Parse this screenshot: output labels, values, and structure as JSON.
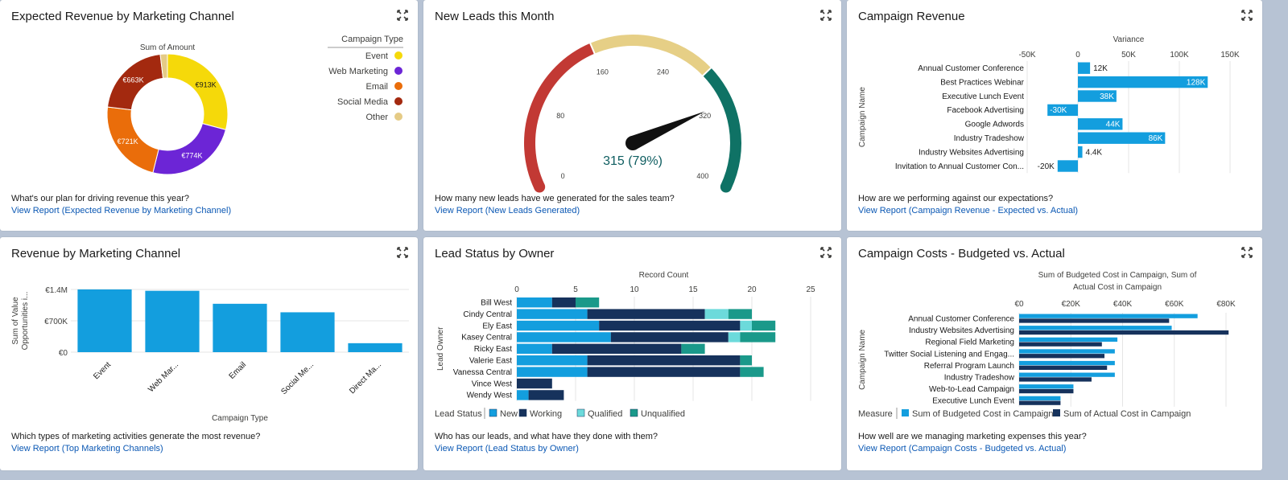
{
  "colors": {
    "blue": "#139ede",
    "navy": "#16325c",
    "teal_light": "#6cdadb",
    "teal": "#1a998a",
    "event": "#f5d90a",
    "web": "#6c25d6",
    "email": "#ea6d0a",
    "social": "#a3290f",
    "other": "#e5cb86"
  },
  "cards": [
    {
      "title": "Expected Revenue by Marketing Channel",
      "question": "What's our plan for driving revenue this year?",
      "link": "View Report (Expected Revenue by Marketing Channel)"
    },
    {
      "title": "New Leads this Month",
      "question": "How many new leads have we generated for the sales team?",
      "link": "View Report (New Leads Generated)"
    },
    {
      "title": "Campaign Revenue",
      "question": "How are we performing against our expectations?",
      "link": "View Report (Campaign Revenue - Expected vs. Actual)"
    },
    {
      "title": "Revenue by Marketing Channel",
      "question": "Which types of marketing activities generate the most revenue?",
      "link": "View Report (Top Marketing Channels)"
    },
    {
      "title": "Lead Status by Owner",
      "question": "Who has our leads, and what have they done with them?",
      "link": "View Report (Lead Status by Owner)"
    },
    {
      "title": "Campaign Costs - Budgeted vs. Actual",
      "question": "How well are we managing marketing expenses this year?",
      "link": "View Report (Campaign Costs - Budgeted vs. Actual)"
    }
  ],
  "chart_data": [
    {
      "type": "pie",
      "title": "Sum of Amount",
      "legend_title": "Campaign Type",
      "legend_position": "right",
      "slices": [
        {
          "name": "Event",
          "value": 913,
          "label": "€913K",
          "color": "#f5d90a"
        },
        {
          "name": "Web Marketing",
          "value": 774,
          "label": "€774K",
          "color": "#6c25d6"
        },
        {
          "name": "Email",
          "value": 721,
          "label": "€721K",
          "color": "#ea6d0a"
        },
        {
          "name": "Social Media",
          "value": 663,
          "label": "€663K",
          "color": "#a3290f"
        },
        {
          "name": "Other",
          "value": 60,
          "label": "",
          "color": "#e5cb86"
        }
      ]
    },
    {
      "type": "gauge",
      "value": 315,
      "display": "315 (79%)",
      "min": 0,
      "max": 400,
      "ticks": [
        "0",
        "80",
        "160",
        "240",
        "320",
        "400"
      ],
      "bands": [
        {
          "from": 0,
          "to": 160,
          "color": "#c23934"
        },
        {
          "from": 160,
          "to": 280,
          "color": "#e6cf86"
        },
        {
          "from": 280,
          "to": 400,
          "color": "#0f7265"
        }
      ]
    },
    {
      "type": "bar",
      "orientation": "horizontal",
      "xlabel": "Variance",
      "ylabel": "Campaign Name",
      "xlim": [
        -50,
        150
      ],
      "ticks": [
        "-50K",
        "0",
        "50K",
        "100K",
        "150K"
      ],
      "tick_values": [
        -50,
        0,
        50,
        100,
        150
      ],
      "categories": [
        "Annual Customer Conference",
        "Best Practices Webinar",
        "Executive Lunch Event",
        "Facebook Advertising",
        "Google Adwords",
        "Industry Tradeshow",
        "Industry Websites Advertising",
        "Invitation to Annual Customer Con..."
      ],
      "values": [
        12,
        128,
        38,
        -30,
        44,
        86,
        4.4,
        -20
      ],
      "labels": [
        "12K",
        "128K",
        "38K",
        "-30K",
        "44K",
        "86K",
        "4.4K",
        "-20K"
      ]
    },
    {
      "type": "bar",
      "orientation": "vertical",
      "xlabel": "Campaign Type",
      "ylabel": "Sum of Value Opportunities i...",
      "ylim": [
        0,
        1.4
      ],
      "ticks": [
        "€0",
        "€700K",
        "€1.4M"
      ],
      "tick_values": [
        0,
        0.7,
        1.4
      ],
      "categories": [
        "Event",
        "Web Mar...",
        "Email",
        "Social Me...",
        "Direct Ma..."
      ],
      "values": [
        1.4,
        1.37,
        1.08,
        0.89,
        0.2
      ]
    },
    {
      "type": "bar",
      "orientation": "horizontal",
      "stacked": true,
      "xlabel": "Record Count",
      "ylabel": "Lead Owner",
      "xlim": [
        0,
        25
      ],
      "ticks": [
        "0",
        "5",
        "10",
        "15",
        "20",
        "25"
      ],
      "tick_values": [
        0,
        5,
        10,
        15,
        20,
        25
      ],
      "categories": [
        "Bill West",
        "Cindy Central",
        "Ely East",
        "Kasey Central",
        "Ricky East",
        "Valerie East",
        "Vanessa Central",
        "Vince West",
        "Wendy West"
      ],
      "legend_title": "Lead Status",
      "series": [
        {
          "name": "New",
          "color": "#139ede",
          "values": [
            3,
            6,
            7,
            8,
            3,
            6,
            6,
            0,
            1
          ]
        },
        {
          "name": "Working",
          "color": "#16325c",
          "values": [
            2,
            10,
            12,
            10,
            11,
            13,
            13,
            3,
            3
          ]
        },
        {
          "name": "Qualified",
          "color": "#6cdadb",
          "values": [
            0,
            2,
            1,
            1,
            0,
            0,
            0,
            0,
            0
          ]
        },
        {
          "name": "Unqualified",
          "color": "#1a998a",
          "values": [
            2,
            2,
            2,
            3,
            2,
            1,
            2,
            0,
            0
          ]
        }
      ]
    },
    {
      "type": "bar",
      "orientation": "horizontal",
      "title": "Sum of Budgeted Cost in Campaign, Sum of Actual Cost in Campaign",
      "ylabel": "Campaign Name",
      "xlim": [
        0,
        80
      ],
      "ticks": [
        "€0",
        "€20K",
        "€40K",
        "€60K",
        "€80K"
      ],
      "tick_values": [
        0,
        20,
        40,
        60,
        80
      ],
      "categories": [
        "Annual Customer Conference",
        "Industry Websites Advertising",
        "Regional Field Marketing",
        "Twitter Social Listening and Engag...",
        "Referral Program Launch",
        "Industry Tradeshow",
        "Web-to-Lead Campaign",
        "Executive Lunch Event"
      ],
      "legend_title": "Measure",
      "series": [
        {
          "name": "Sum of Budgeted Cost in Campaign",
          "color": "#139ede",
          "values": [
            69,
            59,
            38,
            37,
            37,
            37,
            21,
            16
          ]
        },
        {
          "name": "Sum of Actual Cost in Campaign",
          "color": "#16325c",
          "values": [
            58,
            81,
            32,
            33,
            34,
            28,
            21,
            16
          ]
        }
      ]
    }
  ]
}
